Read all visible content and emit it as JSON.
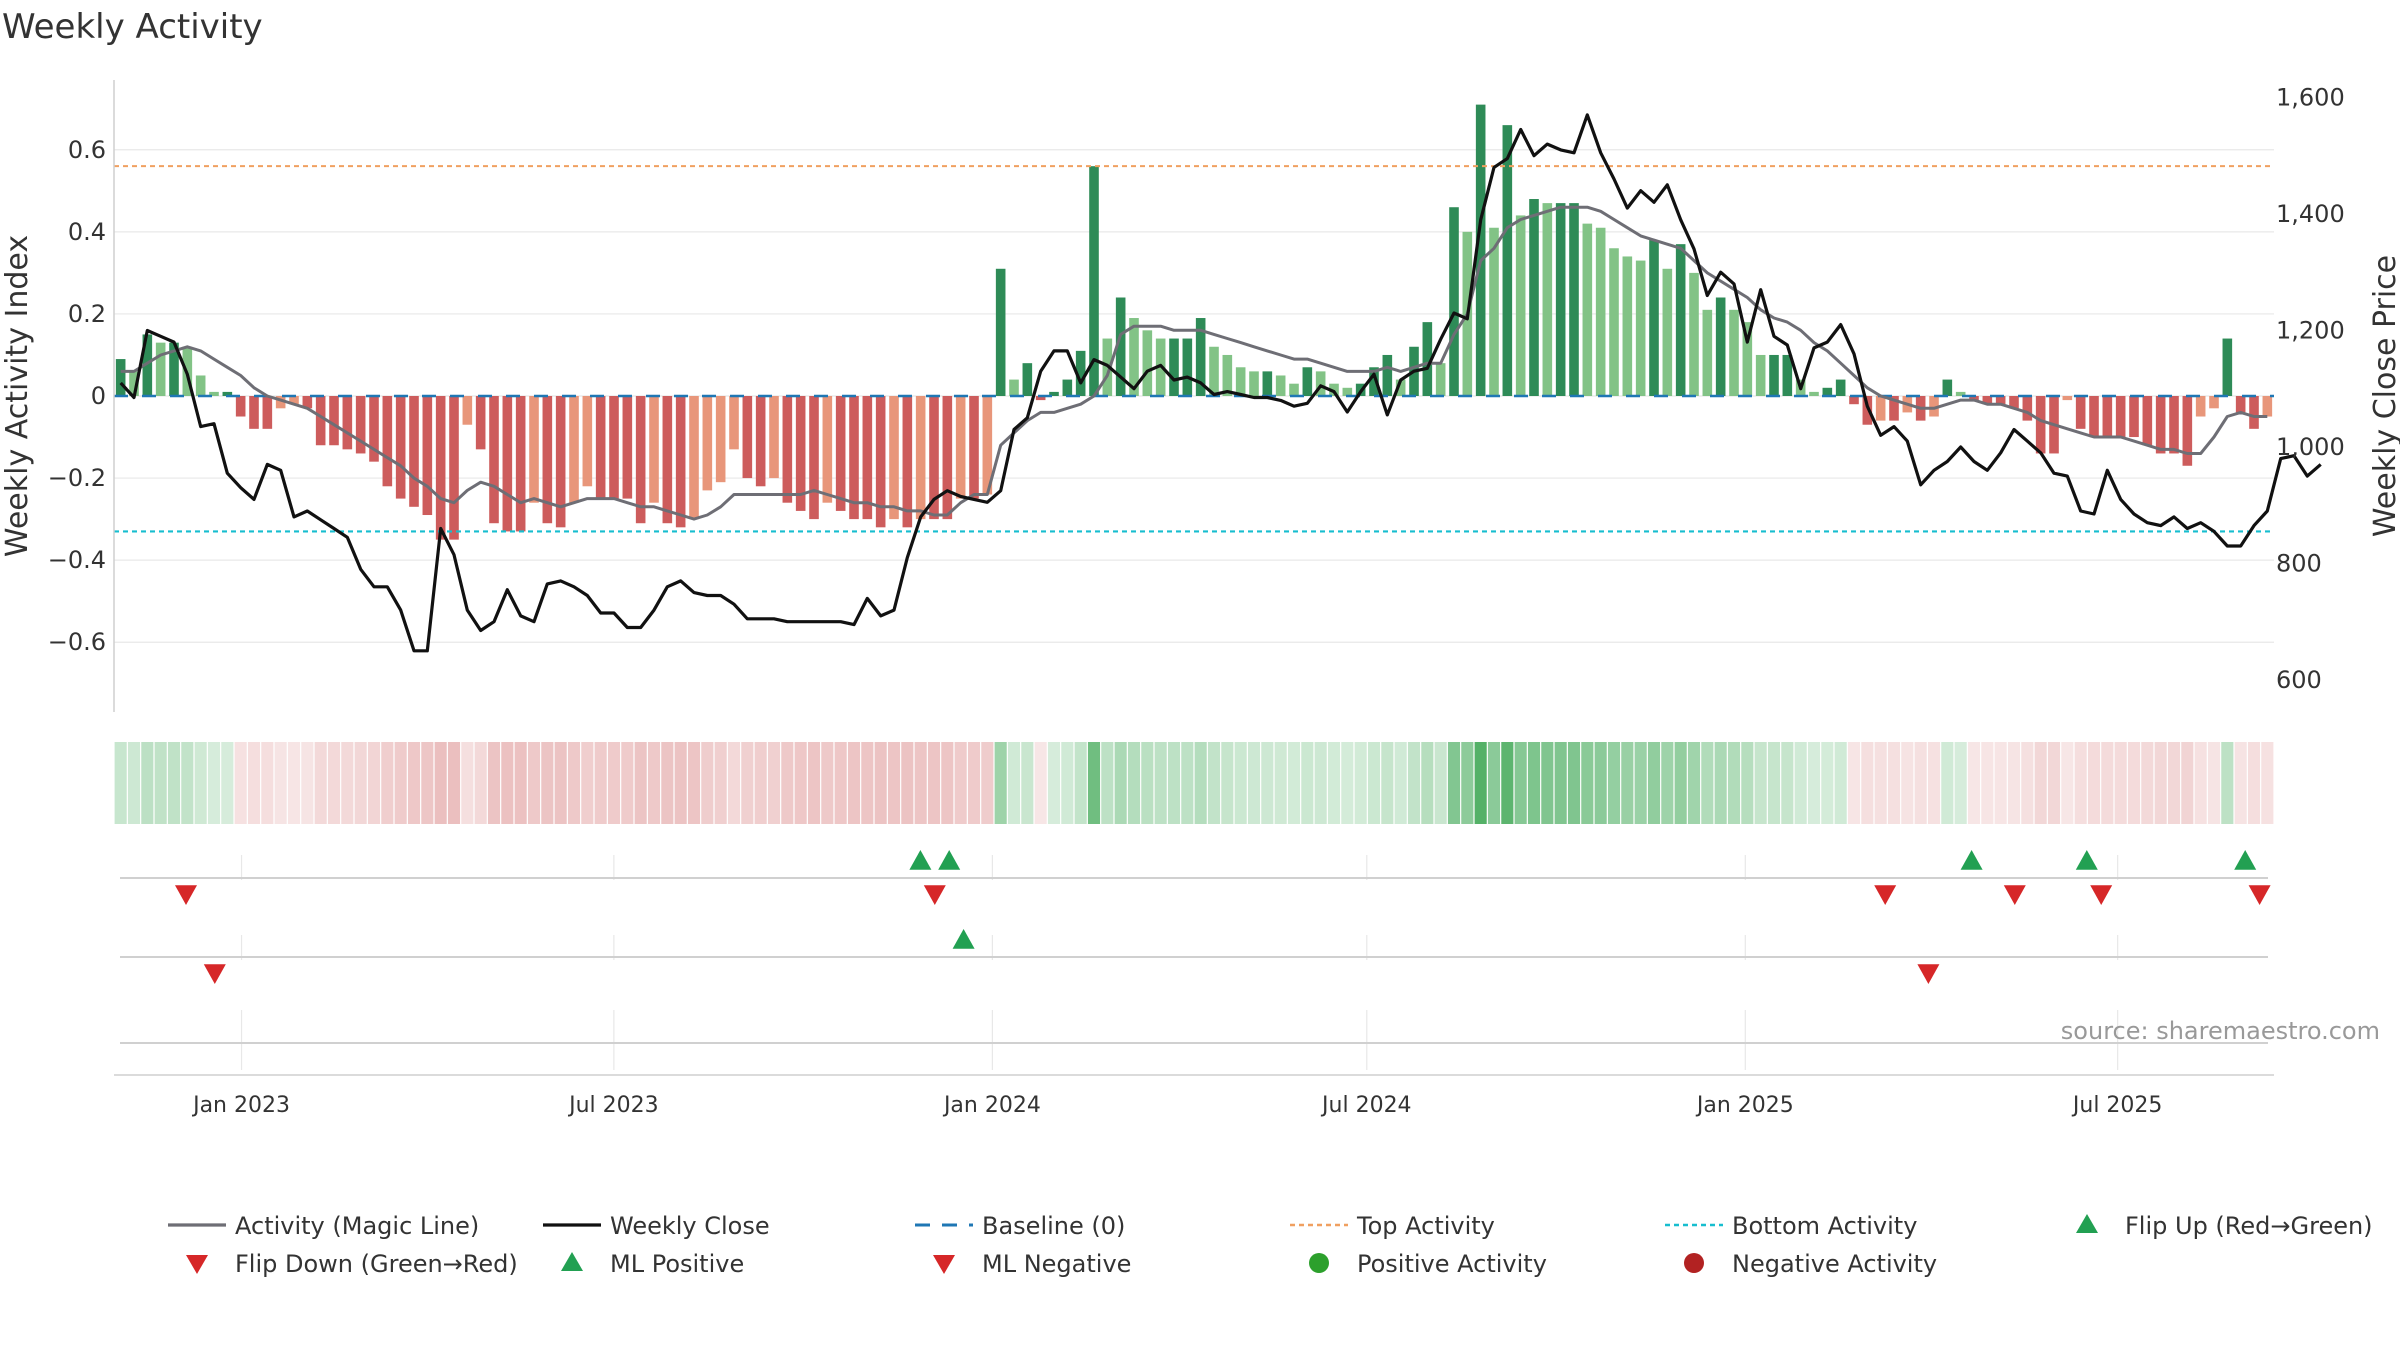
{
  "title": "Weekly Activity",
  "source": "source: sharemaestro.com",
  "colors": {
    "pos_dark": "#2e8b57",
    "pos_light": "#82c386",
    "neg_dark": "#cd5c5c",
    "neg_light": "#e8967a",
    "magic_line": "#6e6e75",
    "close_line": "#111111",
    "baseline": "#1f77b4",
    "top_line": "#f0a060",
    "bottom_line": "#17becf",
    "flip_up": "#22a052",
    "flip_down": "#d62728",
    "pos_dot": "#2ca02c",
    "neg_dot": "#b22222",
    "grid": "#e8e8e8"
  },
  "chart_data": {
    "type": "bar",
    "title": "Weekly Activity",
    "ylabel_left": "Weekly Activity Index",
    "ylabel_right": "Weekly Close Price",
    "ylim_left": [
      -0.77,
      0.77
    ],
    "ylim_right": [
      545,
      1630
    ],
    "yticks_left": [
      -0.6,
      -0.4,
      -0.2,
      0,
      0.2,
      0.4,
      0.6
    ],
    "yticks_left_labels": [
      "−0.6",
      "−0.4",
      "−0.2",
      "0",
      "0.2",
      "0.4",
      "0.6"
    ],
    "yticks_right": [
      600,
      800,
      1000,
      1200,
      1400,
      1600
    ],
    "yticks_right_labels": [
      "600",
      "800",
      "1,000",
      "1,200",
      "1,400",
      "1,600"
    ],
    "x_start": "2022-10-31",
    "x_end": "2025-09-15",
    "xticks": [
      {
        "date": "2023-01-01",
        "label": "Jan 2023"
      },
      {
        "date": "2023-07-01",
        "label": "Jul 2023"
      },
      {
        "date": "2024-01-01",
        "label": "Jan 2024"
      },
      {
        "date": "2024-07-01",
        "label": "Jul 2024"
      },
      {
        "date": "2025-01-01",
        "label": "Jan 2025"
      },
      {
        "date": "2025-07-01",
        "label": "Jul 2025"
      }
    ],
    "top_activity": 0.56,
    "bottom_activity": -0.33,
    "grid": true,
    "legend_position": "bottom",
    "series": [
      {
        "name": "Weekly Activity Index",
        "kind": "bar",
        "values": [
          0.09,
          0.06,
          0.15,
          0.13,
          0.13,
          0.12,
          0.05,
          0.01,
          0.01,
          -0.05,
          -0.08,
          -0.08,
          -0.03,
          -0.02,
          -0.03,
          -0.12,
          -0.12,
          -0.13,
          -0.14,
          -0.16,
          -0.22,
          -0.25,
          -0.27,
          -0.29,
          -0.35,
          -0.35,
          -0.07,
          -0.13,
          -0.31,
          -0.33,
          -0.33,
          -0.26,
          -0.31,
          -0.32,
          -0.26,
          -0.22,
          -0.25,
          -0.25,
          -0.25,
          -0.31,
          -0.26,
          -0.31,
          -0.32,
          -0.3,
          -0.23,
          -0.21,
          -0.13,
          -0.2,
          -0.22,
          -0.2,
          -0.26,
          -0.28,
          -0.3,
          -0.26,
          -0.28,
          -0.3,
          -0.3,
          -0.32,
          -0.3,
          -0.32,
          -0.3,
          -0.3,
          -0.3,
          -0.25,
          -0.25,
          -0.24,
          0.31,
          0.04,
          0.08,
          -0.01,
          0.01,
          0.04,
          0.11,
          0.56,
          0.14,
          0.24,
          0.19,
          0.16,
          0.14,
          0.14,
          0.14,
          0.19,
          0.12,
          0.1,
          0.07,
          0.06,
          0.06,
          0.05,
          0.03,
          0.07,
          0.06,
          0.03,
          0.02,
          0.03,
          0.07,
          0.1,
          0.04,
          0.12,
          0.18,
          0.08,
          0.46,
          0.4,
          0.71,
          0.41,
          0.66,
          0.44,
          0.48,
          0.47,
          0.47,
          0.47,
          0.42,
          0.41,
          0.36,
          0.34,
          0.33,
          0.38,
          0.31,
          0.37,
          0.3,
          0.21,
          0.24,
          0.21,
          0.18,
          0.1,
          0.1,
          0.1,
          0.04,
          0.01,
          0.02,
          0.04,
          -0.02,
          -0.07,
          -0.06,
          -0.06,
          -0.04,
          -0.06,
          -0.05,
          0.04,
          0.01,
          -0.01,
          -0.02,
          -0.02,
          -0.03,
          -0.06,
          -0.14,
          -0.14,
          -0.01,
          -0.08,
          -0.1,
          -0.1,
          -0.1,
          -0.1,
          -0.12,
          -0.14,
          -0.14,
          -0.17,
          -0.05,
          -0.03,
          0.14,
          -0.04,
          -0.08,
          -0.05
        ]
      },
      {
        "name": "Activity (Magic Line)",
        "kind": "line",
        "values": [
          0.06,
          0.06,
          0.08,
          0.1,
          0.11,
          0.12,
          0.11,
          0.09,
          0.07,
          0.05,
          0.02,
          0.0,
          -0.01,
          -0.02,
          -0.03,
          -0.05,
          -0.07,
          -0.09,
          -0.11,
          -0.13,
          -0.15,
          -0.17,
          -0.2,
          -0.22,
          -0.25,
          -0.26,
          -0.23,
          -0.21,
          -0.22,
          -0.24,
          -0.26,
          -0.25,
          -0.26,
          -0.27,
          -0.26,
          -0.25,
          -0.25,
          -0.25,
          -0.26,
          -0.27,
          -0.27,
          -0.28,
          -0.29,
          -0.3,
          -0.29,
          -0.27,
          -0.24,
          -0.24,
          -0.24,
          -0.24,
          -0.24,
          -0.24,
          -0.23,
          -0.24,
          -0.25,
          -0.26,
          -0.26,
          -0.27,
          -0.27,
          -0.28,
          -0.28,
          -0.29,
          -0.29,
          -0.26,
          -0.24,
          -0.24,
          -0.12,
          -0.09,
          -0.06,
          -0.04,
          -0.04,
          -0.03,
          -0.02,
          0.0,
          0.05,
          0.15,
          0.17,
          0.17,
          0.17,
          0.16,
          0.16,
          0.16,
          0.15,
          0.14,
          0.13,
          0.12,
          0.11,
          0.1,
          0.09,
          0.09,
          0.08,
          0.07,
          0.06,
          0.06,
          0.06,
          0.07,
          0.06,
          0.07,
          0.08,
          0.08,
          0.15,
          0.2,
          0.33,
          0.36,
          0.41,
          0.43,
          0.44,
          0.45,
          0.46,
          0.46,
          0.46,
          0.45,
          0.43,
          0.41,
          0.39,
          0.38,
          0.37,
          0.36,
          0.33,
          0.3,
          0.28,
          0.26,
          0.24,
          0.21,
          0.19,
          0.18,
          0.16,
          0.13,
          0.11,
          0.08,
          0.05,
          0.02,
          0.0,
          -0.01,
          -0.02,
          -0.03,
          -0.03,
          -0.02,
          -0.01,
          -0.01,
          -0.02,
          -0.02,
          -0.03,
          -0.04,
          -0.06,
          -0.07,
          -0.08,
          -0.09,
          -0.1,
          -0.1,
          -0.1,
          -0.11,
          -0.12,
          -0.13,
          -0.13,
          -0.14,
          -0.14,
          -0.1,
          -0.05,
          -0.04,
          -0.05,
          -0.05
        ]
      },
      {
        "name": "Weekly Close",
        "kind": "line",
        "axis": "right",
        "values": [
          1110,
          1085,
          1200,
          1190,
          1180,
          1125,
          1035,
          1040,
          955,
          930,
          910,
          970,
          960,
          880,
          890,
          875,
          860,
          845,
          790,
          760,
          760,
          720,
          650,
          650,
          860,
          815,
          720,
          685,
          700,
          755,
          710,
          700,
          765,
          770,
          760,
          745,
          715,
          715,
          690,
          690,
          720,
          760,
          770,
          750,
          745,
          745,
          730,
          705,
          705,
          705,
          700,
          700,
          700,
          700,
          700,
          695,
          740,
          710,
          720,
          810,
          880,
          910,
          925,
          915,
          910,
          905,
          925,
          1030,
          1050,
          1130,
          1165,
          1165,
          1110,
          1150,
          1140,
          1120,
          1100,
          1130,
          1140,
          1115,
          1120,
          1110,
          1090,
          1095,
          1090,
          1085,
          1085,
          1080,
          1070,
          1075,
          1105,
          1095,
          1060,
          1095,
          1125,
          1055,
          1115,
          1130,
          1135,
          1185,
          1230,
          1220,
          1390,
          1480,
          1495,
          1545,
          1500,
          1520,
          1510,
          1505,
          1570,
          1505,
          1460,
          1410,
          1440,
          1420,
          1450,
          1390,
          1340,
          1260,
          1300,
          1280,
          1180,
          1270,
          1190,
          1175,
          1100,
          1170,
          1180,
          1210,
          1160,
          1070,
          1020,
          1035,
          1010,
          935,
          960,
          975,
          1000,
          975,
          960,
          990,
          1030,
          1010,
          990,
          955,
          950,
          890,
          885,
          960,
          910,
          885,
          870,
          865,
          880,
          860,
          870,
          855,
          830,
          830,
          865,
          890,
          980,
          985,
          950,
          970
        ]
      }
    ]
  },
  "flip_markers": {
    "up_row1_dates": [
      "2023-11-27",
      "2023-12-11",
      "2025-04-21",
      "2025-06-16",
      "2025-09-01"
    ],
    "down_row1_dates": [
      "2022-12-05",
      "2023-12-04",
      "2025-03-10",
      "2025-05-12",
      "2025-06-23",
      "2025-09-08"
    ],
    "up_row2_dates": [
      "2023-12-18"
    ],
    "down_row2_dates": [
      "2022-12-19",
      "2025-03-31"
    ]
  },
  "legend": [
    {
      "label": "Activity (Magic Line)",
      "icon": "solid-line",
      "color": "#6e6e75"
    },
    {
      "label": "Weekly Close",
      "icon": "solid-line",
      "color": "#111111"
    },
    {
      "label": "Baseline (0)",
      "icon": "dashed-line",
      "color": "#1f77b4"
    },
    {
      "label": "Top Activity",
      "icon": "dotted-line",
      "color": "#f0a060"
    },
    {
      "label": "Bottom Activity",
      "icon": "dotted-line",
      "color": "#17becf"
    },
    {
      "label": "Flip Up (Red→Green)",
      "icon": "triangle-up",
      "color": "#22a052"
    },
    {
      "label": "Flip Down (Green→Red)",
      "icon": "triangle-down",
      "color": "#d62728"
    },
    {
      "label": "ML Positive",
      "icon": "triangle-up",
      "color": "#22a052"
    },
    {
      "label": "ML Negative",
      "icon": "triangle-down",
      "color": "#d62728"
    },
    {
      "label": "Positive Activity",
      "icon": "circle",
      "color": "#2ca02c"
    },
    {
      "label": "Negative Activity",
      "icon": "circle",
      "color": "#b22222"
    }
  ]
}
